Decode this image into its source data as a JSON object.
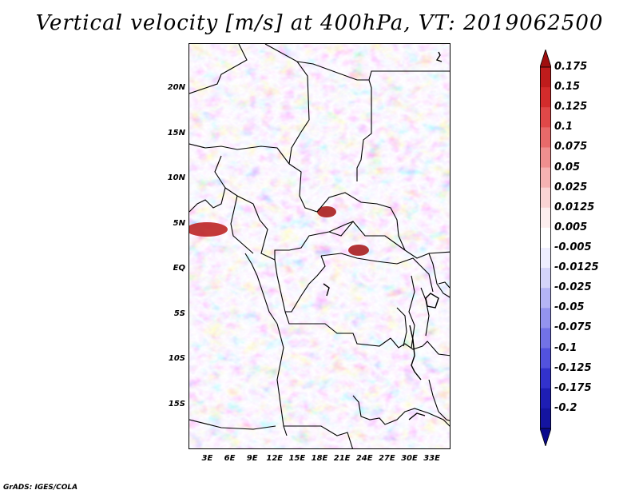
{
  "title": "Vertical velocity [m/s] at 400hPa, VT: 2019062500",
  "credit": "GrADS: IGES/COLA",
  "map": {
    "lat_labels": [
      "20N",
      "15N",
      "10N",
      "5N",
      "EQ",
      "5S",
      "10S",
      "15S"
    ],
    "lon_labels": [
      "3E",
      "6E",
      "9E",
      "12E",
      "15E",
      "18E",
      "21E",
      "24E",
      "27E",
      "30E",
      "33E"
    ],
    "lat_values": [
      20,
      15,
      10,
      5,
      0,
      -5,
      -10,
      -15
    ],
    "lon_values": [
      3,
      6,
      9,
      12,
      15,
      18,
      21,
      24,
      27,
      30,
      33
    ],
    "lon_range": [
      0.5,
      35.5
    ],
    "lat_range": [
      -20,
      25
    ]
  },
  "colorbar": {
    "labels": [
      "0.175",
      "0.15",
      "0.125",
      "0.1",
      "0.075",
      "0.05",
      "0.025",
      "0.0125",
      "0.005",
      "-0.005",
      "-0.0125",
      "-0.025",
      "-0.05",
      "-0.075",
      "-0.1",
      "-0.125",
      "-0.175",
      "-0.2"
    ],
    "colors": [
      "#a00f0f",
      "#bf1c1c",
      "#d32c2c",
      "#e04848",
      "#e86a6a",
      "#ef8f8f",
      "#f5b2b2",
      "#fad4d4",
      "#fdeeee",
      "#ffffff",
      "#eeeeff",
      "#d4d4fa",
      "#b4b4f5",
      "#9393ee",
      "#7272e6",
      "#5252de",
      "#3232cc",
      "#1e1eb4",
      "#1414a0",
      "#0a0a8c"
    ]
  }
}
